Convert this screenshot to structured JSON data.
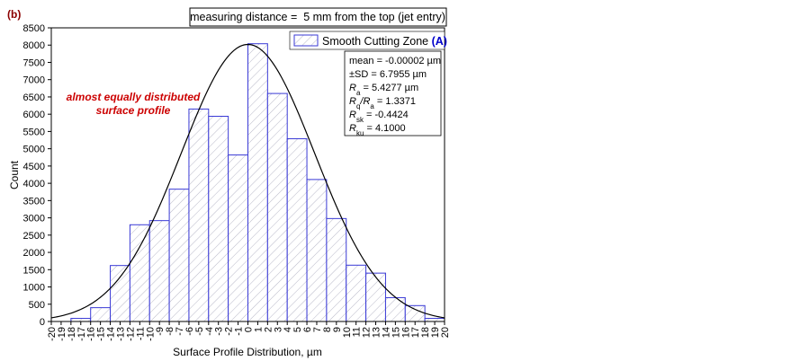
{
  "panel_label": "(b)",
  "info_box": "measuring distance =  5 mm from the top (jet entry)",
  "annotation": [
    "almost equally distributed",
    "surface profile"
  ],
  "legend": {
    "label": "Smooth Cutting Zone ",
    "label_accent": "(A)"
  },
  "stats": [
    {
      "sym": "",
      "sub": "",
      "sym2": "",
      "sub2": "",
      "rest": "mean = -0.00002 µm"
    },
    {
      "sym": "",
      "sub": "",
      "sym2": "",
      "sub2": "",
      "rest": "±SD = 6.7955 µm"
    },
    {
      "sym": "R",
      "sub": "a",
      "sym2": "",
      "sub2": "",
      "rest": " = 5.4277 µm"
    },
    {
      "sym": "R",
      "sub": "q",
      "sym2": "/R",
      "sub2": "a",
      "rest": " = 1.3371"
    },
    {
      "sym": "R",
      "sub": "sk",
      "sym2": "",
      "sub2": "",
      "rest": " = -0.4424"
    },
    {
      "sym": "R",
      "sub": "ku",
      "sym2": "",
      "sub2": "",
      "rest": " = 4.1000"
    }
  ],
  "colors": {
    "bar_edge": "#3a3ad6",
    "hatch": "#b8b8c8",
    "curve": "#000000",
    "annotation": "#cc0000",
    "panel_label": "#8b0000"
  },
  "chart_data": {
    "type": "bar",
    "subtype": "histogram",
    "xlabel": "Surface Profile Distribution, µm",
    "ylabel": "Count",
    "xlim": [
      -20,
      20
    ],
    "ylim": [
      0,
      8500
    ],
    "xticks": [
      -20,
      -19,
      -18,
      -17,
      -16,
      -15,
      -14,
      -13,
      -12,
      -11,
      -10,
      -9,
      -8,
      -7,
      -6,
      -5,
      -4,
      -3,
      -2,
      -1,
      0,
      1,
      2,
      3,
      4,
      5,
      6,
      7,
      8,
      9,
      10,
      11,
      12,
      13,
      14,
      15,
      16,
      17,
      18,
      19,
      20
    ],
    "yticks": [
      0,
      500,
      1000,
      1500,
      2000,
      2500,
      3000,
      3500,
      4000,
      4500,
      5000,
      5500,
      6000,
      6500,
      7000,
      7500,
      8000,
      8500
    ],
    "bins": [
      {
        "x0": -18,
        "x1": -16,
        "count": 90
      },
      {
        "x0": -16,
        "x1": -14,
        "count": 400
      },
      {
        "x0": -14,
        "x1": -12,
        "count": 1620
      },
      {
        "x0": -12,
        "x1": -10,
        "count": 2800
      },
      {
        "x0": -10,
        "x1": -8,
        "count": 2920
      },
      {
        "x0": -8,
        "x1": -6,
        "count": 3830
      },
      {
        "x0": -6,
        "x1": -4,
        "count": 6150
      },
      {
        "x0": -4,
        "x1": -2,
        "count": 5940
      },
      {
        "x0": -2,
        "x1": 0,
        "count": 4820
      },
      {
        "x0": 0,
        "x1": 2,
        "count": 8040
      },
      {
        "x0": 2,
        "x1": 4,
        "count": 6600
      },
      {
        "x0": 4,
        "x1": 6,
        "count": 5290
      },
      {
        "x0": 6,
        "x1": 8,
        "count": 4110
      },
      {
        "x0": 8,
        "x1": 10,
        "count": 2980
      },
      {
        "x0": 10,
        "x1": 12,
        "count": 1630
      },
      {
        "x0": 12,
        "x1": 14,
        "count": 1400
      },
      {
        "x0": 14,
        "x1": 16,
        "count": 690
      },
      {
        "x0": 16,
        "x1": 18,
        "count": 460
      },
      {
        "x0": 18,
        "x1": 20,
        "count": 90
      }
    ],
    "fit_curve": {
      "type": "normal",
      "mean": -2e-05,
      "sd": 6.7955,
      "peak": 8020
    },
    "grid": false,
    "legend_position": "top-right"
  }
}
